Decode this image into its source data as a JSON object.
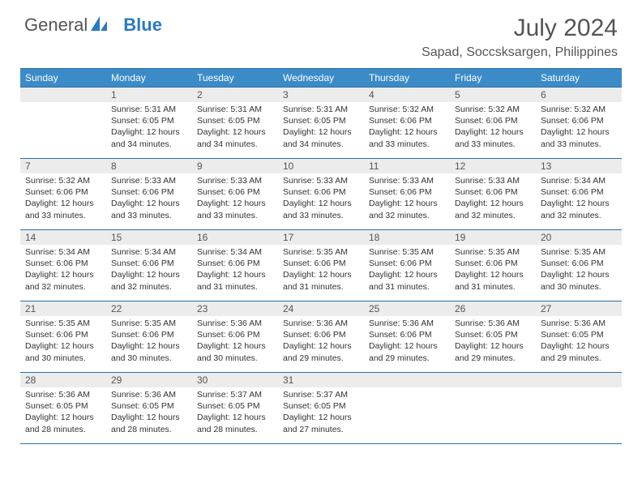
{
  "logo": {
    "word1": "General",
    "word2": "Blue"
  },
  "title": "July 2024",
  "location": "Sapad, Soccsksargen, Philippines",
  "colors": {
    "header_bg": "#3b8bc9",
    "header_border": "#2a6fa3",
    "daynum_bg": "#ececec",
    "text": "#333333",
    "muted": "#555555"
  },
  "dayHeaders": [
    "Sunday",
    "Monday",
    "Tuesday",
    "Wednesday",
    "Thursday",
    "Friday",
    "Saturday"
  ],
  "weeks": [
    [
      {
        "n": "",
        "sr": "",
        "ss": "",
        "dl": ""
      },
      {
        "n": "1",
        "sr": "5:31 AM",
        "ss": "6:05 PM",
        "dl": "12 hours and 34 minutes."
      },
      {
        "n": "2",
        "sr": "5:31 AM",
        "ss": "6:05 PM",
        "dl": "12 hours and 34 minutes."
      },
      {
        "n": "3",
        "sr": "5:31 AM",
        "ss": "6:05 PM",
        "dl": "12 hours and 34 minutes."
      },
      {
        "n": "4",
        "sr": "5:32 AM",
        "ss": "6:06 PM",
        "dl": "12 hours and 33 minutes."
      },
      {
        "n": "5",
        "sr": "5:32 AM",
        "ss": "6:06 PM",
        "dl": "12 hours and 33 minutes."
      },
      {
        "n": "6",
        "sr": "5:32 AM",
        "ss": "6:06 PM",
        "dl": "12 hours and 33 minutes."
      }
    ],
    [
      {
        "n": "7",
        "sr": "5:32 AM",
        "ss": "6:06 PM",
        "dl": "12 hours and 33 minutes."
      },
      {
        "n": "8",
        "sr": "5:33 AM",
        "ss": "6:06 PM",
        "dl": "12 hours and 33 minutes."
      },
      {
        "n": "9",
        "sr": "5:33 AM",
        "ss": "6:06 PM",
        "dl": "12 hours and 33 minutes."
      },
      {
        "n": "10",
        "sr": "5:33 AM",
        "ss": "6:06 PM",
        "dl": "12 hours and 33 minutes."
      },
      {
        "n": "11",
        "sr": "5:33 AM",
        "ss": "6:06 PM",
        "dl": "12 hours and 32 minutes."
      },
      {
        "n": "12",
        "sr": "5:33 AM",
        "ss": "6:06 PM",
        "dl": "12 hours and 32 minutes."
      },
      {
        "n": "13",
        "sr": "5:34 AM",
        "ss": "6:06 PM",
        "dl": "12 hours and 32 minutes."
      }
    ],
    [
      {
        "n": "14",
        "sr": "5:34 AM",
        "ss": "6:06 PM",
        "dl": "12 hours and 32 minutes."
      },
      {
        "n": "15",
        "sr": "5:34 AM",
        "ss": "6:06 PM",
        "dl": "12 hours and 32 minutes."
      },
      {
        "n": "16",
        "sr": "5:34 AM",
        "ss": "6:06 PM",
        "dl": "12 hours and 31 minutes."
      },
      {
        "n": "17",
        "sr": "5:35 AM",
        "ss": "6:06 PM",
        "dl": "12 hours and 31 minutes."
      },
      {
        "n": "18",
        "sr": "5:35 AM",
        "ss": "6:06 PM",
        "dl": "12 hours and 31 minutes."
      },
      {
        "n": "19",
        "sr": "5:35 AM",
        "ss": "6:06 PM",
        "dl": "12 hours and 31 minutes."
      },
      {
        "n": "20",
        "sr": "5:35 AM",
        "ss": "6:06 PM",
        "dl": "12 hours and 30 minutes."
      }
    ],
    [
      {
        "n": "21",
        "sr": "5:35 AM",
        "ss": "6:06 PM",
        "dl": "12 hours and 30 minutes."
      },
      {
        "n": "22",
        "sr": "5:35 AM",
        "ss": "6:06 PM",
        "dl": "12 hours and 30 minutes."
      },
      {
        "n": "23",
        "sr": "5:36 AM",
        "ss": "6:06 PM",
        "dl": "12 hours and 30 minutes."
      },
      {
        "n": "24",
        "sr": "5:36 AM",
        "ss": "6:06 PM",
        "dl": "12 hours and 29 minutes."
      },
      {
        "n": "25",
        "sr": "5:36 AM",
        "ss": "6:06 PM",
        "dl": "12 hours and 29 minutes."
      },
      {
        "n": "26",
        "sr": "5:36 AM",
        "ss": "6:05 PM",
        "dl": "12 hours and 29 minutes."
      },
      {
        "n": "27",
        "sr": "5:36 AM",
        "ss": "6:05 PM",
        "dl": "12 hours and 29 minutes."
      }
    ],
    [
      {
        "n": "28",
        "sr": "5:36 AM",
        "ss": "6:05 PM",
        "dl": "12 hours and 28 minutes."
      },
      {
        "n": "29",
        "sr": "5:36 AM",
        "ss": "6:05 PM",
        "dl": "12 hours and 28 minutes."
      },
      {
        "n": "30",
        "sr": "5:37 AM",
        "ss": "6:05 PM",
        "dl": "12 hours and 28 minutes."
      },
      {
        "n": "31",
        "sr": "5:37 AM",
        "ss": "6:05 PM",
        "dl": "12 hours and 27 minutes."
      },
      {
        "n": "",
        "sr": "",
        "ss": "",
        "dl": ""
      },
      {
        "n": "",
        "sr": "",
        "ss": "",
        "dl": ""
      },
      {
        "n": "",
        "sr": "",
        "ss": "",
        "dl": ""
      }
    ]
  ],
  "labels": {
    "sunrise": "Sunrise: ",
    "sunset": "Sunset: ",
    "daylight": "Daylight: "
  }
}
